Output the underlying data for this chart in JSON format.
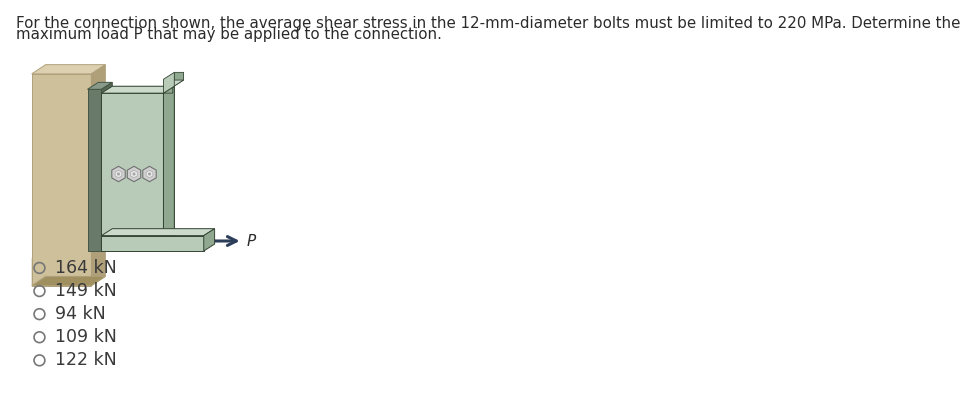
{
  "title_line1": "For the connection shown, the average shear stress in the 12-mm-diameter bolts must be limited to 220 MPa. Determine the",
  "title_line2": "maximum load P that may be applied to the connection.",
  "options": [
    "164 kN",
    "149 kN",
    "94 kN",
    "109 kN",
    "122 kN"
  ],
  "bg_color": "#ffffff",
  "text_color": "#2b2b2b",
  "option_text_color": "#3a3a3a",
  "title_fontsize": 10.8,
  "option_fontsize": 12.5,
  "wall_face_color": "#cdc09a",
  "wall_right_color": "#b0a07a",
  "wall_top_color": "#ddd0b0",
  "wall_bottom_color": "#a09060",
  "steel_face_color": "#b8cbb8",
  "steel_right_color": "#90a890",
  "steel_top_color": "#ccdacc",
  "steel_dark": "#607060",
  "bracket_face_color": "#b8cbb8",
  "bracket_bottom_color": "#90a890",
  "bracket_top_color": "#ccdacc",
  "arrow_color": "#2c3e5a",
  "bolt_light": "#d0d0d0",
  "bolt_mid": "#a8a8a8",
  "bolt_dark": "#707070",
  "edge_color": "#556655",
  "dark_edge": "#334433"
}
